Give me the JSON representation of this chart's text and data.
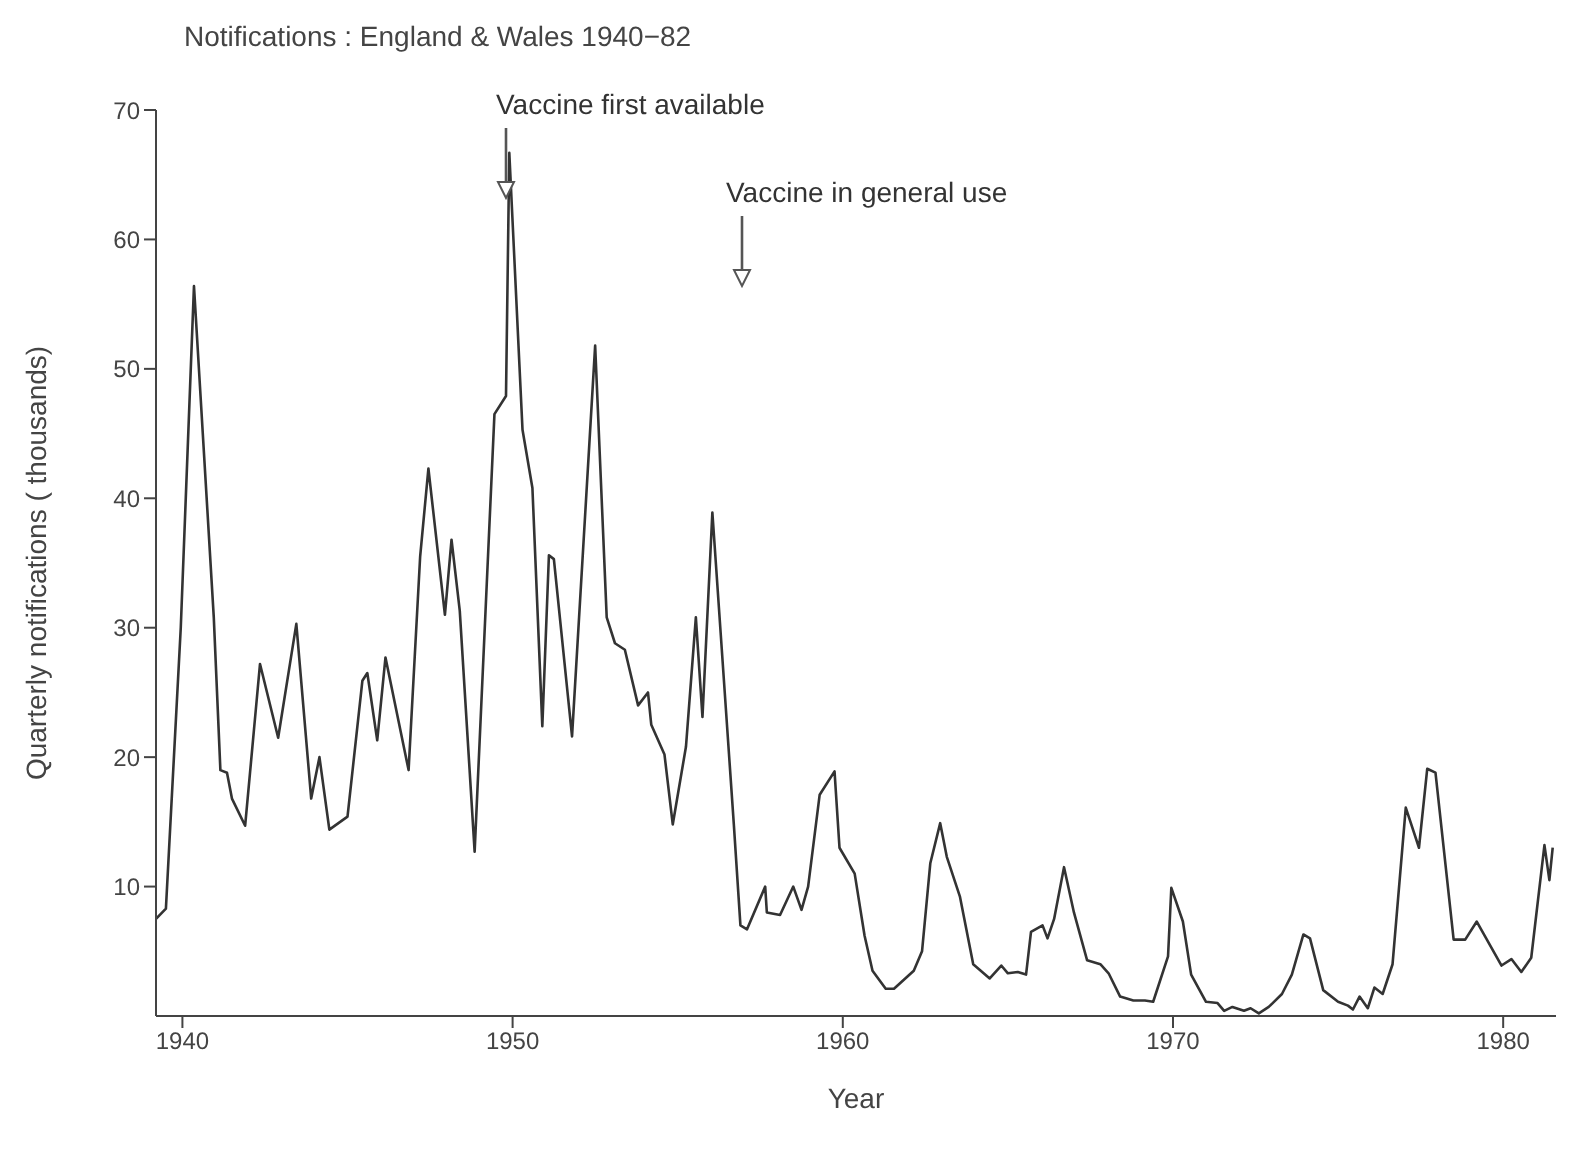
{
  "chart_data": {
    "type": "line",
    "title": "Notifications : England & Wales  1940−82",
    "xlabel": "Year",
    "ylabel": "Quarterly notifications ( thousands)",
    "x": [
      1939.2,
      1939.5,
      1939.95,
      1940.35,
      1940.95,
      1941.15,
      1941.35,
      1941.5,
      1941.9,
      1942.35,
      1942.9,
      1943.45,
      1943.9,
      1944.15,
      1944.45,
      1945.0,
      1945.45,
      1945.6,
      1945.9,
      1946.15,
      1946.85,
      1947.2,
      1947.45,
      1947.95,
      1948.15,
      1948.4,
      1948.85,
      1949.45,
      1949.8,
      1949.9,
      1950.3,
      1950.6,
      1950.9,
      1951.1,
      1951.25,
      1951.8,
      1952.5,
      1952.85,
      1953.1,
      1953.4,
      1953.8,
      1954.1,
      1954.2,
      1954.6,
      1954.85,
      1955.25,
      1955.55,
      1955.75,
      1956.05,
      1956.7,
      1956.9,
      1957.1,
      1957.65,
      1957.7,
      1958.1,
      1958.5,
      1958.75,
      1958.95,
      1959.3,
      1959.75,
      1959.9,
      1960.36,
      1960.66,
      1960.9,
      1961.3,
      1961.55,
      1962.15,
      1962.4,
      1962.65,
      1962.95,
      1963.15,
      1963.55,
      1963.95,
      1964.45,
      1964.8,
      1965.0,
      1965.3,
      1965.55,
      1965.7,
      1966.05,
      1966.2,
      1966.4,
      1966.7,
      1967.0,
      1967.4,
      1967.8,
      1968.05,
      1968.4,
      1968.8,
      1969.15,
      1969.4,
      1969.85,
      1969.95,
      1970.3,
      1970.55,
      1971.0,
      1971.35,
      1971.55,
      1971.8,
      1972.15,
      1972.35,
      1972.6,
      1972.9,
      1973.3,
      1973.6,
      1973.95,
      1974.15,
      1974.55,
      1975.0,
      1975.3,
      1975.45,
      1975.65,
      1975.9,
      1976.1,
      1976.35,
      1976.65,
      1977.05,
      1977.45,
      1977.7,
      1977.95,
      1978.5,
      1978.85,
      1979.2,
      1979.95,
      1980.25,
      1980.55,
      1980.85,
      1981.25,
      1981.4,
      1981.5
    ],
    "values": [
      7.5,
      8.3,
      30,
      56.4,
      30.8,
      19,
      18.8,
      16.8,
      14.7,
      27.2,
      21.5,
      30.3,
      16.8,
      20,
      14.4,
      15.4,
      25.9,
      26.5,
      21.3,
      27.7,
      19,
      35.5,
      42.3,
      31,
      36.8,
      31.3,
      12.7,
      46.5,
      47.9,
      66.7,
      45.3,
      40.8,
      22.4,
      35.6,
      35.3,
      21.6,
      51.8,
      30.8,
      28.8,
      28.3,
      24,
      25,
      22.5,
      20.2,
      14.8,
      20.8,
      30.8,
      23.1,
      38.9,
      14.8,
      7,
      6.7,
      10,
      8,
      7.8,
      10,
      8.2,
      10,
      17.1,
      18.9,
      13,
      11,
      6.2,
      3.5,
      2.1,
      2.1,
      3.5,
      5,
      11.8,
      14.9,
      12.3,
      9.2,
      4,
      2.9,
      3.9,
      3.3,
      3.4,
      3.2,
      6.5,
      7,
      6,
      7.5,
      11.5,
      8,
      4.3,
      4,
      3.3,
      1.5,
      1.2,
      1.2,
      1.1,
      4.6,
      9.9,
      7.3,
      3.2,
      1.1,
      1,
      0.4,
      0.7,
      0.4,
      0.6,
      0.2,
      0.7,
      1.7,
      3.2,
      6.3,
      6,
      2,
      1.1,
      0.8,
      0.5,
      1.5,
      0.6,
      2.2,
      1.7,
      4,
      16.1,
      13,
      19.1,
      18.8,
      5.9,
      5.9,
      7.3,
      3.9,
      4.4,
      3.4,
      4.5,
      13.2,
      10.5,
      13
    ],
    "color": "#333333",
    "marker": "none",
    "line_style": "solid",
    "grid": false,
    "legend": false,
    "xlim": [
      1939.2,
      1981.6
    ],
    "xticks": [
      1940,
      1950,
      1960,
      1970,
      1980
    ],
    "ylim": [
      0,
      70
    ],
    "yticks": [
      10,
      20,
      30,
      40,
      50,
      60,
      70
    ],
    "annotations": [
      "Vaccine first available",
      "Vaccine in general use"
    ]
  }
}
